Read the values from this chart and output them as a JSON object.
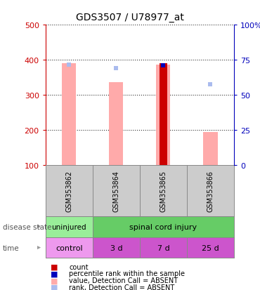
{
  "title": "GDS3507 / U78977_at",
  "samples": [
    "GSM353862",
    "GSM353864",
    "GSM353865",
    "GSM353866"
  ],
  "ylim_left": [
    100,
    500
  ],
  "ylim_right": [
    0,
    100
  ],
  "yticks_left": [
    100,
    200,
    300,
    400,
    500
  ],
  "yticks_right": [
    0,
    25,
    50,
    75,
    100
  ],
  "yticklabels_right": [
    "0",
    "25",
    "50",
    "75",
    "100%"
  ],
  "value_absent": [
    390,
    335,
    385,
    195
  ],
  "rank_absent": [
    385,
    375,
    null,
    330
  ],
  "count_present": [
    null,
    null,
    390,
    null
  ],
  "percentile_present": [
    null,
    null,
    383,
    null
  ],
  "time": [
    "control",
    "3 d",
    "7 d",
    "25 d"
  ],
  "bar_absent_color": "#ffaaaa",
  "rank_absent_color": "#aabbee",
  "count_color": "#cc0000",
  "percentile_color": "#0000bb",
  "left_axis_color": "#cc0000",
  "right_axis_color": "#0000bb",
  "sample_bg_color": "#cccccc",
  "disease_uninj_color": "#99ee99",
  "disease_sci_color": "#66cc66",
  "time_ctrl_color": "#ee99ee",
  "time_other_color": "#cc55cc",
  "grid_color": "#000000",
  "legend_items": [
    [
      "#cc0000",
      "count"
    ],
    [
      "#0000bb",
      "percentile rank within the sample"
    ],
    [
      "#ffaaaa",
      "value, Detection Call = ABSENT"
    ],
    [
      "#aabbee",
      "rank, Detection Call = ABSENT"
    ]
  ]
}
